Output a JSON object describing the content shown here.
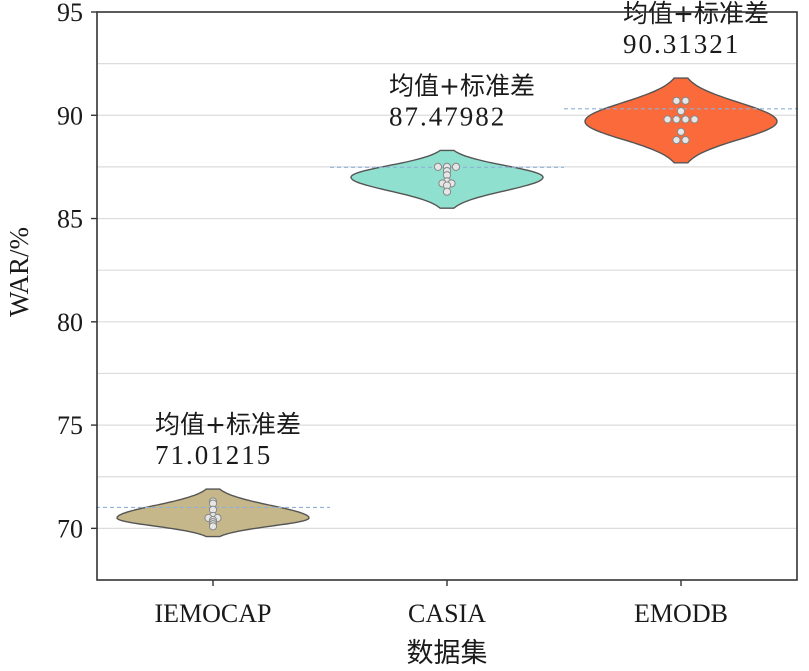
{
  "chart_data": {
    "type": "violin",
    "xlabel": "数据集",
    "ylabel": "WAR/%",
    "ylim": [
      67.5,
      95
    ],
    "yticks": [
      70,
      75,
      80,
      85,
      90,
      95
    ],
    "grid": "horizontal",
    "categories": [
      "IEMOCAP",
      "CASIA",
      "EMODB"
    ],
    "series": [
      {
        "category": "IEMOCAP",
        "color": "#c5b78a",
        "annotation_label": "均值+标准差",
        "annotation_value": "71.01215",
        "mean_std": 71.01215,
        "min": 69.6,
        "max": 71.9,
        "mode": 70.5,
        "points": [
          71.3,
          71.2,
          70.9,
          70.6,
          70.5,
          70.5,
          70.4,
          70.3,
          70.2,
          70.1
        ]
      },
      {
        "category": "CASIA",
        "color": "#8fe0cf",
        "annotation_label": "均值+标准差",
        "annotation_value": "87.47982",
        "mean_std": 87.47982,
        "min": 85.5,
        "max": 88.3,
        "mode": 87.0,
        "points": [
          87.5,
          87.5,
          87.5,
          87.3,
          87.1,
          86.8,
          86.7,
          86.7,
          86.6,
          86.3
        ]
      },
      {
        "category": "EMODB",
        "color": "#fb6a3a",
        "annotation_label": "均值+标准差",
        "annotation_value": "90.31321",
        "mean_std": 90.31321,
        "min": 87.7,
        "max": 91.8,
        "mode": 89.7,
        "points": [
          90.7,
          90.7,
          90.2,
          89.8,
          89.8,
          89.8,
          89.8,
          89.2,
          88.8,
          88.8
        ]
      }
    ]
  }
}
